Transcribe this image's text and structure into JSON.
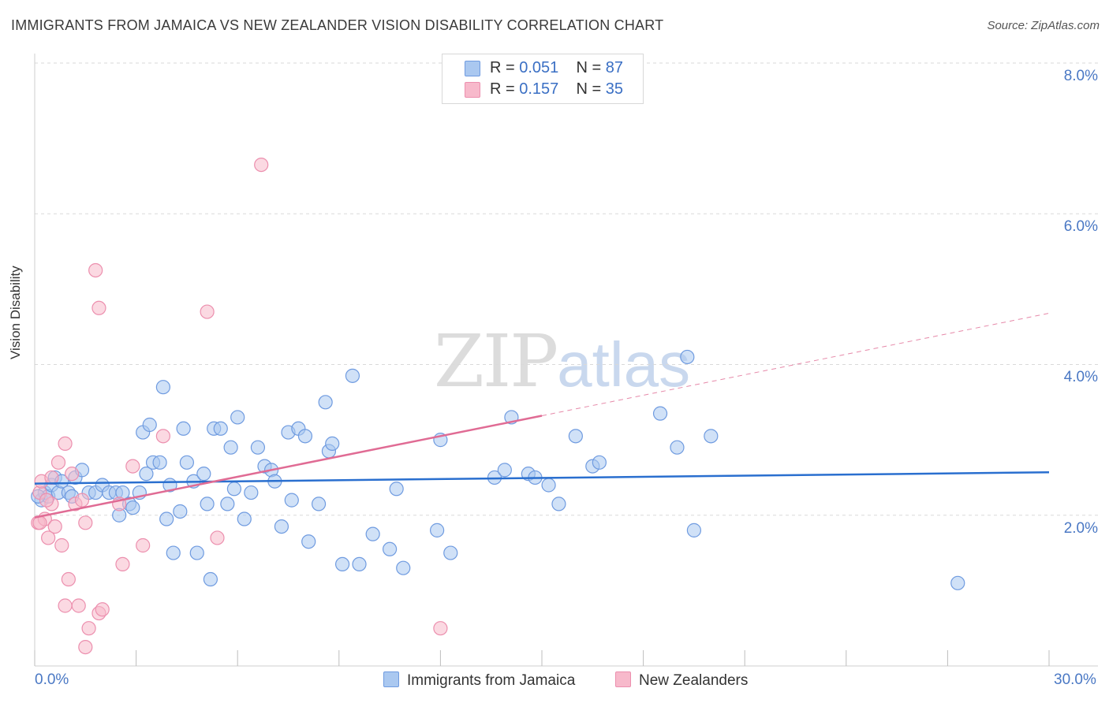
{
  "header": {
    "title": "IMMIGRANTS FROM JAMAICA VS NEW ZEALANDER VISION DISABILITY CORRELATION CHART",
    "source": "Source: ZipAtlas.com"
  },
  "watermark": {
    "zip": "ZIP",
    "atlas": "atlas"
  },
  "legend_top": {
    "rows": [
      {
        "r_label": "R = ",
        "r_value": "0.051",
        "n_label": "N = ",
        "n_value": "87",
        "color": "#aac8f0"
      },
      {
        "r_label": "R = ",
        "r_value": "0.157",
        "n_label": "N = ",
        "n_value": "35",
        "color": "#f7b9cb"
      }
    ]
  },
  "legend_bottom": {
    "items": [
      {
        "label": "Immigrants from Jamaica",
        "color": "#aac8f0"
      },
      {
        "label": "New Zealanders",
        "color": "#f7b9cb"
      }
    ]
  },
  "axis": {
    "ylabel": "Vision Disability",
    "yticks": [
      "8.0%",
      "6.0%",
      "4.0%",
      "2.0%"
    ],
    "xticks": [
      "0.0%",
      "30.0%"
    ]
  },
  "colors": {
    "blue_fill": "#aac8f0",
    "blue_stroke": "#6f9be0",
    "blue_line": "#2a6fcf",
    "pink_fill": "#f7b9cb",
    "pink_stroke": "#ec8fae",
    "pink_line": "#e06b94",
    "grid": "#d9d9d9",
    "tick_text": "#4a78c4"
  },
  "chart_data": {
    "type": "scatter",
    "xlabel": "",
    "ylabel": "Vision Disability",
    "xlim": [
      0,
      30
    ],
    "ylim": [
      0,
      8.0
    ],
    "grid": true,
    "legend_placement": "top-center",
    "series": [
      {
        "name": "Immigrants from Jamaica",
        "color": "#aac8f0",
        "trend": {
          "x": [
            0,
            30
          ],
          "y": [
            2.42,
            2.57
          ]
        },
        "points": [
          [
            0.2,
            2.2
          ],
          [
            0.3,
            2.3
          ],
          [
            0.4,
            2.25
          ],
          [
            0.5,
            2.4
          ],
          [
            0.6,
            2.5
          ],
          [
            0.7,
            2.3
          ],
          [
            0.8,
            2.45
          ],
          [
            1.0,
            2.3
          ],
          [
            1.2,
            2.5
          ],
          [
            1.4,
            2.6
          ],
          [
            1.6,
            2.3
          ],
          [
            1.8,
            2.3
          ],
          [
            2.0,
            2.4
          ],
          [
            2.2,
            2.3
          ],
          [
            2.4,
            2.3
          ],
          [
            2.5,
            2.0
          ],
          [
            2.6,
            2.3
          ],
          [
            2.8,
            2.15
          ],
          [
            2.9,
            2.1
          ],
          [
            3.1,
            2.3
          ],
          [
            3.2,
            3.1
          ],
          [
            3.3,
            2.55
          ],
          [
            3.4,
            3.2
          ],
          [
            3.5,
            2.7
          ],
          [
            3.7,
            2.7
          ],
          [
            3.8,
            3.7
          ],
          [
            3.9,
            1.95
          ],
          [
            4.0,
            2.4
          ],
          [
            4.1,
            1.5
          ],
          [
            4.3,
            2.05
          ],
          [
            4.4,
            3.15
          ],
          [
            4.5,
            2.7
          ],
          [
            4.7,
            2.45
          ],
          [
            4.8,
            1.5
          ],
          [
            5.0,
            2.55
          ],
          [
            5.1,
            2.15
          ],
          [
            5.2,
            1.15
          ],
          [
            5.3,
            3.15
          ],
          [
            5.5,
            3.15
          ],
          [
            5.7,
            2.15
          ],
          [
            5.8,
            2.9
          ],
          [
            5.9,
            2.35
          ],
          [
            6.0,
            3.3
          ],
          [
            6.2,
            1.95
          ],
          [
            6.4,
            2.3
          ],
          [
            6.6,
            2.9
          ],
          [
            6.8,
            2.65
          ],
          [
            7.0,
            2.6
          ],
          [
            7.1,
            2.45
          ],
          [
            7.3,
            1.85
          ],
          [
            7.5,
            3.1
          ],
          [
            7.6,
            2.2
          ],
          [
            7.8,
            3.15
          ],
          [
            8.0,
            3.05
          ],
          [
            8.1,
            1.65
          ],
          [
            8.4,
            2.15
          ],
          [
            8.6,
            3.5
          ],
          [
            8.7,
            2.85
          ],
          [
            8.8,
            2.95
          ],
          [
            9.1,
            1.35
          ],
          [
            9.4,
            3.85
          ],
          [
            9.6,
            1.35
          ],
          [
            10.0,
            1.75
          ],
          [
            10.5,
            1.55
          ],
          [
            10.7,
            2.35
          ],
          [
            10.9,
            1.3
          ],
          [
            11.9,
            1.8
          ],
          [
            12.0,
            3.0
          ],
          [
            12.3,
            1.5
          ],
          [
            13.6,
            2.5
          ],
          [
            13.9,
            2.6
          ],
          [
            14.1,
            3.3
          ],
          [
            14.6,
            2.55
          ],
          [
            14.8,
            2.5
          ],
          [
            15.2,
            2.4
          ],
          [
            15.5,
            2.15
          ],
          [
            16.0,
            3.05
          ],
          [
            16.5,
            2.65
          ],
          [
            16.7,
            2.7
          ],
          [
            18.5,
            3.35
          ],
          [
            19.0,
            2.9
          ],
          [
            19.3,
            4.1
          ],
          [
            19.5,
            1.8
          ],
          [
            20.0,
            3.05
          ],
          [
            27.3,
            1.1
          ],
          [
            0.1,
            2.25
          ],
          [
            1.1,
            2.25
          ]
        ]
      },
      {
        "name": "New Zealanders",
        "color": "#f7b9cb",
        "trend": {
          "x": [
            0,
            15
          ],
          "y": [
            1.97,
            3.32
          ],
          "dashed_to": {
            "x": 30,
            "y": 4.68
          }
        },
        "points": [
          [
            0.1,
            1.9
          ],
          [
            0.15,
            2.3
          ],
          [
            0.2,
            2.45
          ],
          [
            0.3,
            1.95
          ],
          [
            0.4,
            1.7
          ],
          [
            0.5,
            2.15
          ],
          [
            0.5,
            2.5
          ],
          [
            0.6,
            1.85
          ],
          [
            0.7,
            2.7
          ],
          [
            0.8,
            1.6
          ],
          [
            0.9,
            0.8
          ],
          [
            0.9,
            2.95
          ],
          [
            1.0,
            1.15
          ],
          [
            1.1,
            2.55
          ],
          [
            1.2,
            2.15
          ],
          [
            1.3,
            0.8
          ],
          [
            1.4,
            2.2
          ],
          [
            1.5,
            0.25
          ],
          [
            1.5,
            1.9
          ],
          [
            1.6,
            0.5
          ],
          [
            1.8,
            5.25
          ],
          [
            1.9,
            4.75
          ],
          [
            1.9,
            0.7
          ],
          [
            2.0,
            0.75
          ],
          [
            2.5,
            2.15
          ],
          [
            2.6,
            1.35
          ],
          [
            2.9,
            2.65
          ],
          [
            3.2,
            1.6
          ],
          [
            3.8,
            3.05
          ],
          [
            5.1,
            4.7
          ],
          [
            5.4,
            1.7
          ],
          [
            6.7,
            6.65
          ],
          [
            12.0,
            0.5
          ],
          [
            0.15,
            1.9
          ],
          [
            0.35,
            2.2
          ]
        ]
      }
    ]
  }
}
